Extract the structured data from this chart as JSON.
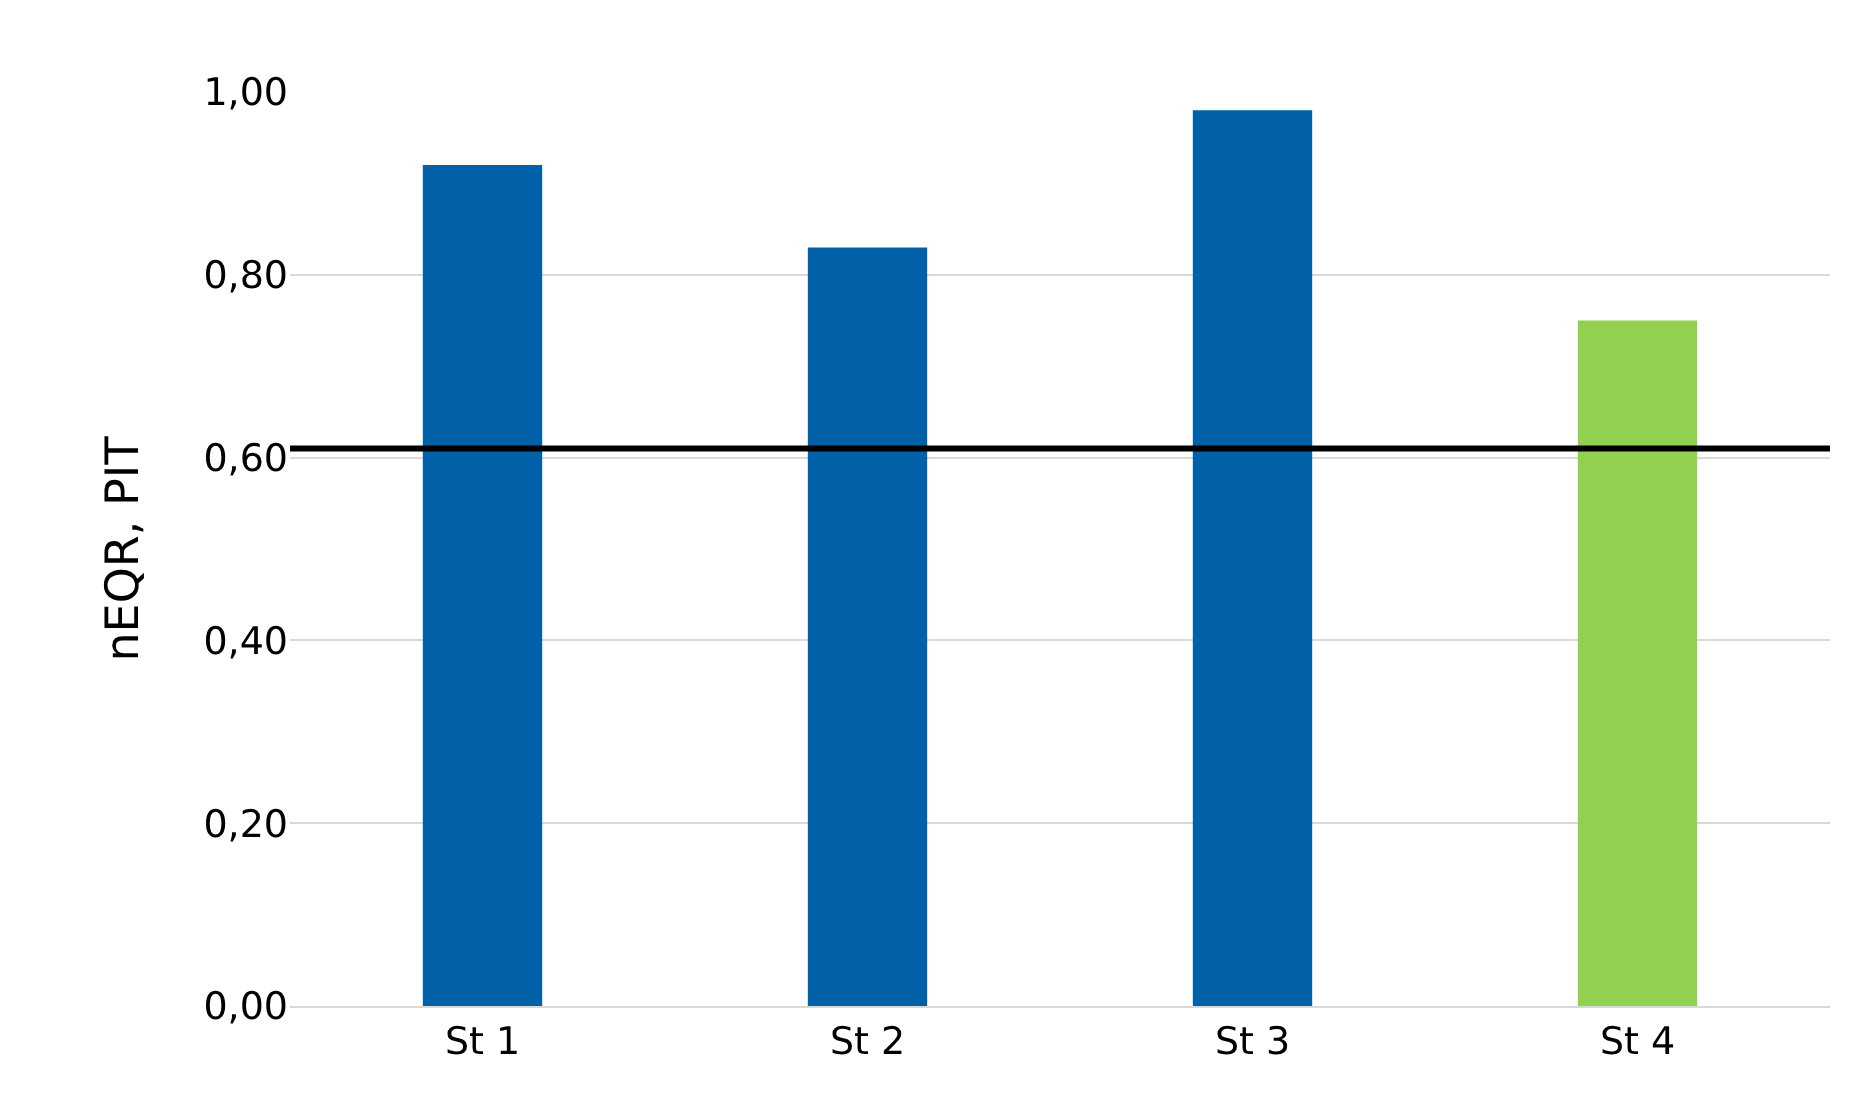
{
  "chart_data": {
    "type": "bar",
    "ylabel": "nEQR, PIT",
    "categories": [
      "St 1",
      "St 2",
      "St 3",
      "St 4"
    ],
    "values": [
      0.92,
      0.83,
      0.98,
      0.75
    ],
    "colors": [
      "#0060a8",
      "#0060a8",
      "#0060a8",
      "#92d050"
    ],
    "ylim": [
      0,
      1
    ],
    "yticks": [
      {
        "value": 0,
        "label": "0,00"
      },
      {
        "value": 0.2,
        "label": "0,20"
      },
      {
        "value": 0.4,
        "label": "0,40"
      },
      {
        "value": 0.6,
        "label": "0,60"
      },
      {
        "value": 0.8,
        "label": "0,80"
      },
      {
        "value": 1.0,
        "label": "1,00"
      }
    ],
    "grid": "y",
    "ref_lines": [
      {
        "axis": "y",
        "value": 0.61,
        "color": "#000000",
        "line_style": "solid"
      }
    ]
  }
}
